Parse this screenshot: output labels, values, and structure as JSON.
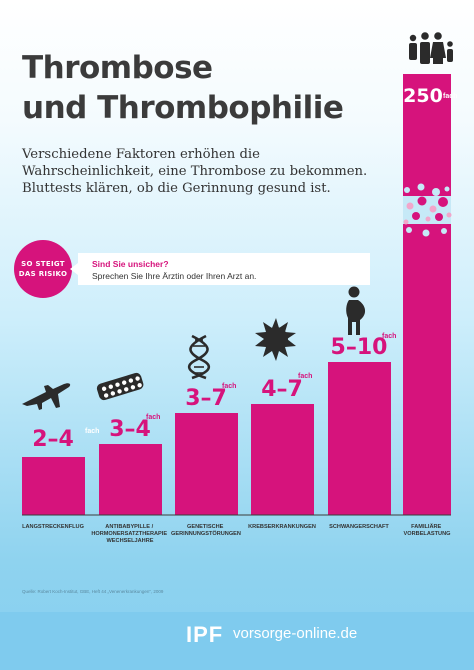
{
  "title_line1": "Thrombose",
  "title_line2": "und Thrombophilie",
  "intro": "Verschiedene Faktoren erhöhen die Wahrscheinlichkeit, eine Thrombose zu bekommen. Bluttests klären, ob die Gerinnung gesund ist.",
  "badge_line1": "SO STEIGT",
  "badge_line2": "DAS RISIKO",
  "callout_question": "Sind Sie unsicher?",
  "callout_answer": "Sprechen Sie Ihre Ärztin oder Ihren Arzt an.",
  "source": "Quelle: Robert Koch-Institut, GBE, Heft 44 „Venenerkrankungen“, 2009",
  "brand_logo": "IPF",
  "brand_domain": "vorsorge-online.de",
  "colors": {
    "accent": "#d6137c",
    "text": "#3b3b3b",
    "footer": "#7fcbee"
  },
  "chart_data": {
    "type": "bar",
    "unit": "fach",
    "categories": [
      "LANGSTRECKENFLUG",
      "ANTIBABYPILLE / HORMONERSATZTHERAPIE WECHSELJAHRE",
      "GENETISCHE GERINNUNGSTÖRUNGEN",
      "KREBSERKRANKUNGEN",
      "SCHWANGERSCHAFT",
      "FAMILIÄRE VORBELASTUNG"
    ],
    "value_labels": [
      "2–4",
      "3–4",
      "3–7",
      "4–7",
      "5–10",
      "250"
    ],
    "ranges": [
      [
        2,
        4
      ],
      [
        3,
        4
      ],
      [
        3,
        7
      ],
      [
        4,
        7
      ],
      [
        5,
        10
      ],
      [
        250,
        250
      ]
    ],
    "icons": [
      "airplane-icon",
      "pill-blister-icon",
      "dna-icon",
      "cancer-cell-icon",
      "pregnant-woman-icon",
      "family-icon"
    ]
  }
}
